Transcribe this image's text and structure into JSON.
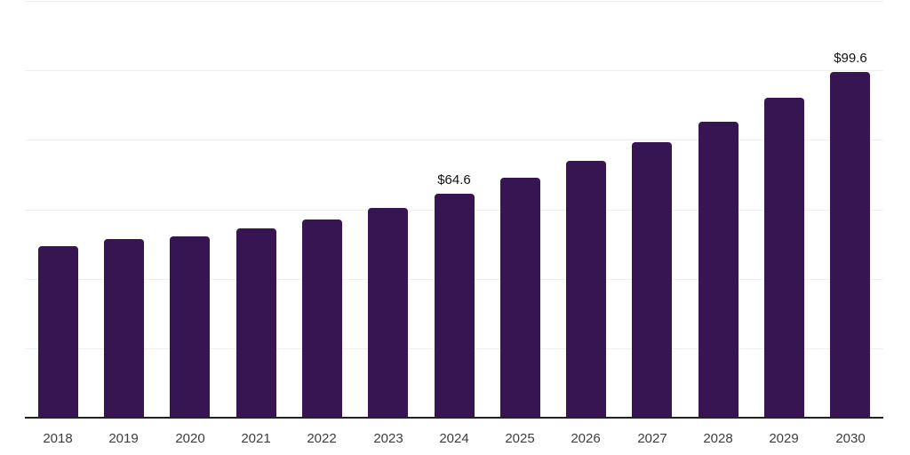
{
  "chart_data": {
    "type": "bar",
    "title": "",
    "xlabel": "",
    "ylabel": "",
    "categories": [
      "2018",
      "2019",
      "2020",
      "2021",
      "2022",
      "2023",
      "2024",
      "2025",
      "2026",
      "2027",
      "2028",
      "2029",
      "2030"
    ],
    "values": [
      49.3,
      51.5,
      52.2,
      54.5,
      57.0,
      60.5,
      64.6,
      69.0,
      73.9,
      79.3,
      85.1,
      92.0,
      99.6
    ],
    "annotations": [
      {
        "category": "2024",
        "text": "$64.6"
      },
      {
        "category": "2030",
        "text": "$99.6"
      }
    ],
    "ylim": [
      0,
      120
    ],
    "gridline_step": 20,
    "grid_on": true,
    "legend": "none",
    "colors": {
      "bar": "#371452",
      "gridline": "#efefef",
      "axis_line": "#222222",
      "tick_label": "#3d3d3d",
      "data_label": "#111111",
      "background": "#ffffff"
    }
  }
}
